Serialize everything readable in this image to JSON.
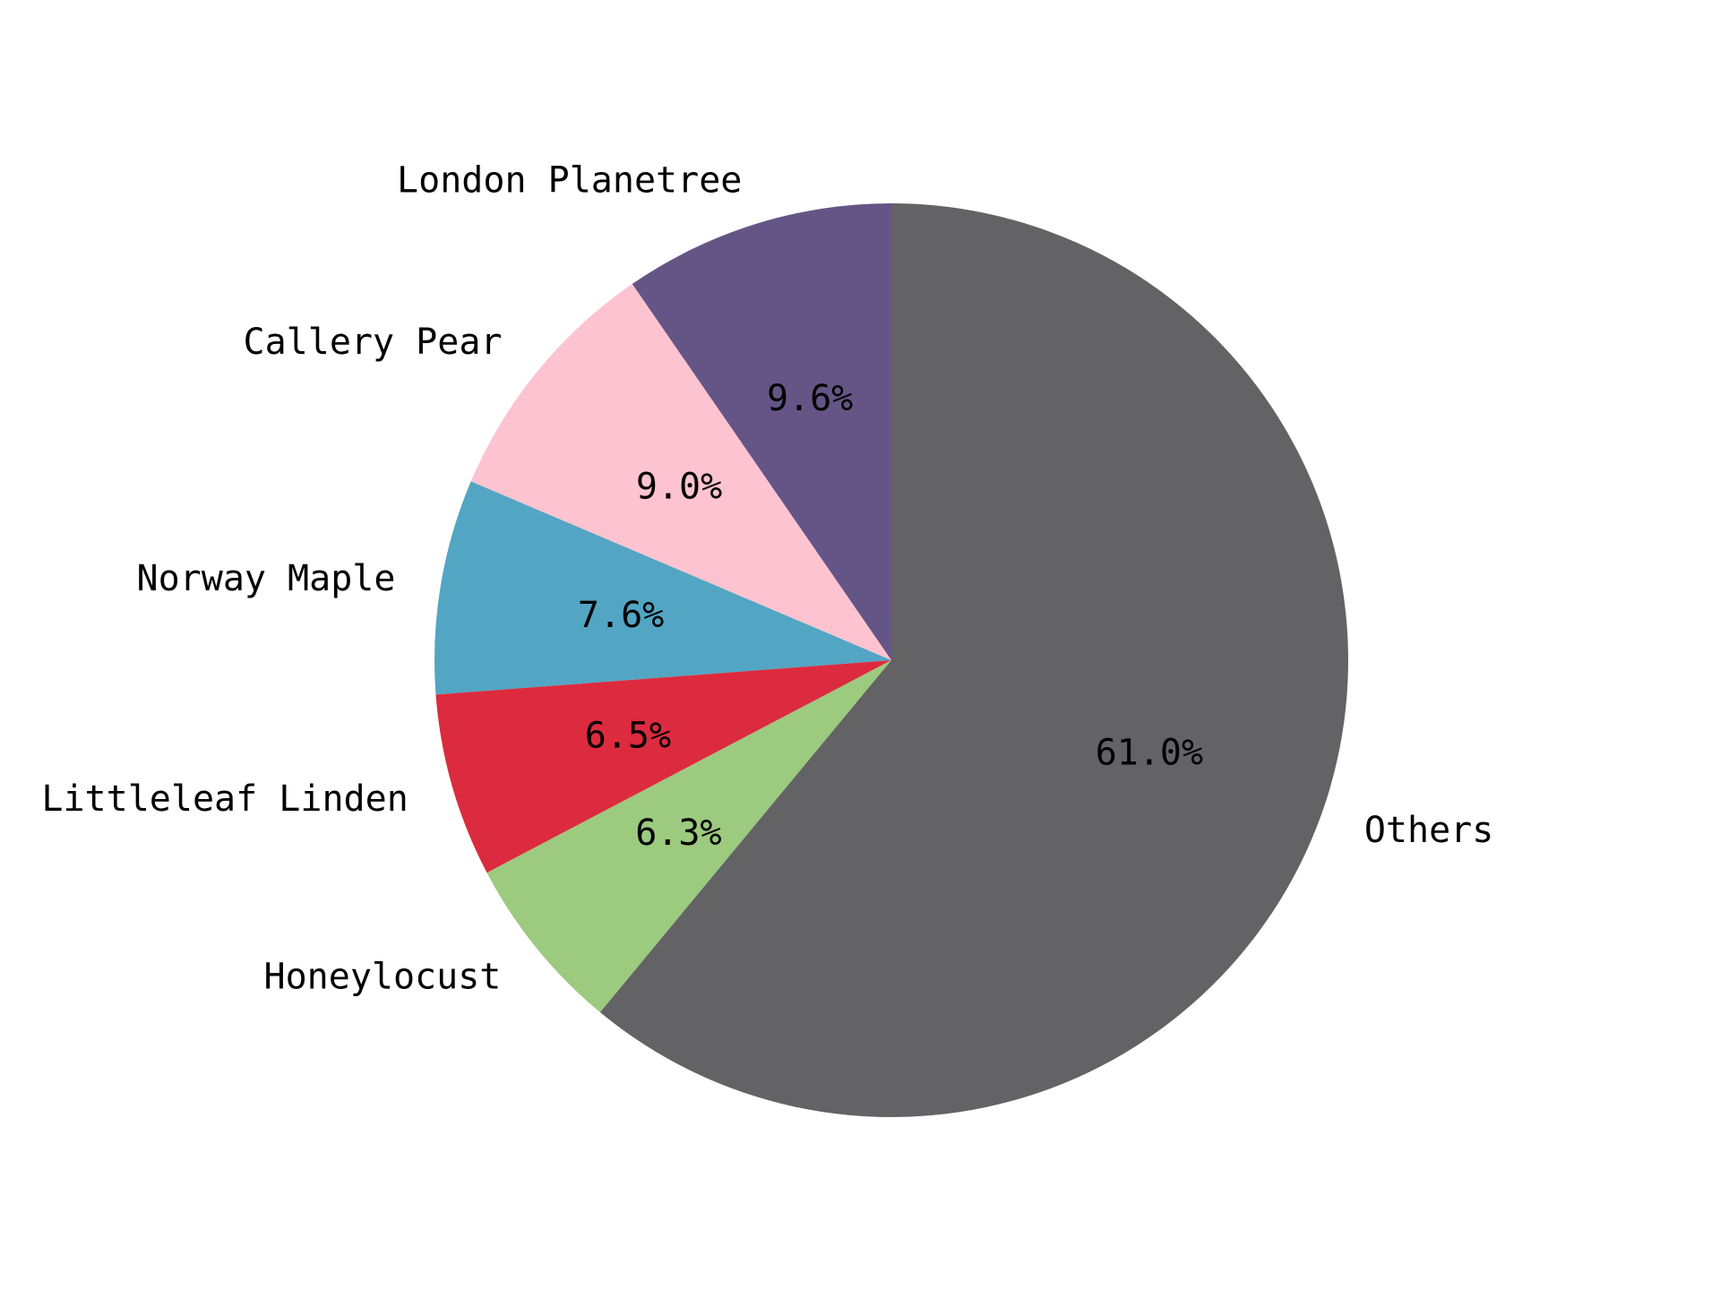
{
  "chart_data": {
    "type": "pie",
    "title": "",
    "start_angle_deg": 90,
    "direction": "counterclockwise",
    "legend": "none",
    "slices": [
      {
        "label": "London Planetree",
        "value": 9.6,
        "pct_label": "9.6%",
        "color": "#655586"
      },
      {
        "label": "Callery Pear",
        "value": 9.0,
        "pct_label": "9.0%",
        "color": "#fdc3d0"
      },
      {
        "label": "Norway Maple",
        "value": 7.6,
        "pct_label": "7.6%",
        "color": "#52a6c3"
      },
      {
        "label": "Littleleaf Linden",
        "value": 6.5,
        "pct_label": "6.5%",
        "color": "#dc2b3e"
      },
      {
        "label": "Honeylocust",
        "value": 6.3,
        "pct_label": "6.3%",
        "color": "#9cca7f"
      },
      {
        "label": "Others",
        "value": 61.0,
        "pct_label": "61.0%",
        "color": "#636265"
      }
    ]
  }
}
